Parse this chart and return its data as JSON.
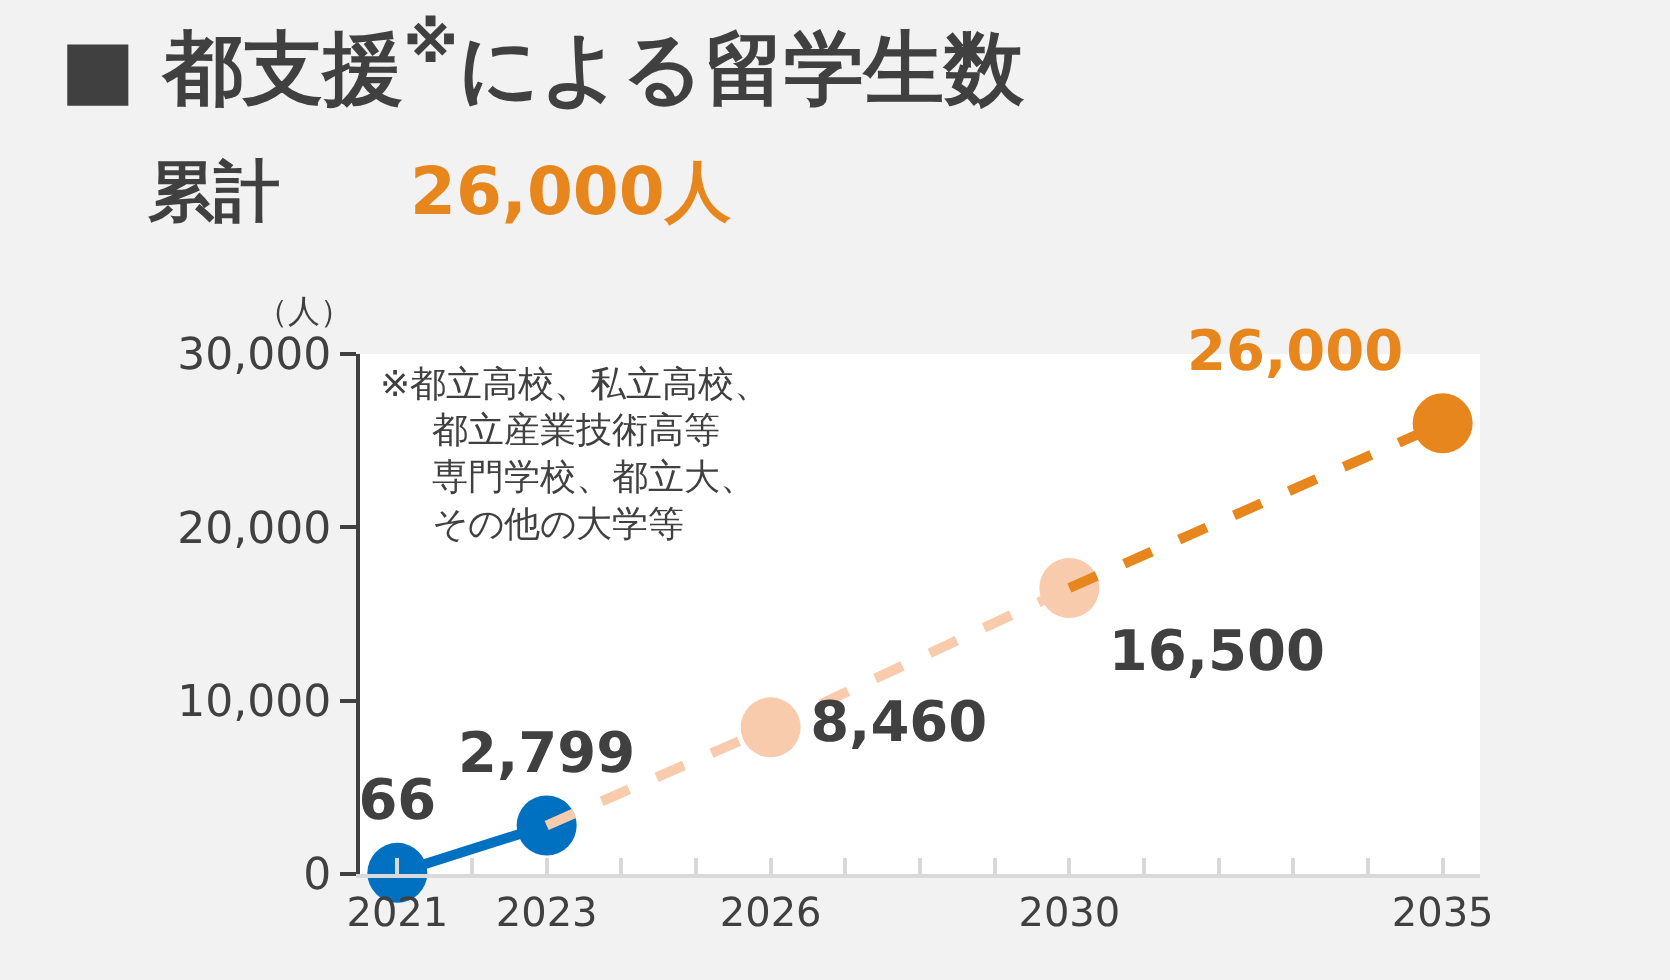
{
  "chart_data": {
    "type": "line",
    "title": "■ 都支援$^{※}$による留学生数",
    "subtitle": "累計",
    "ylabel": "（人）",
    "annotations": [
      "26,000人",
      "※都立高校、私立高校、都立産業技術高等専門学校、都立大、その他の大学等"
    ],
    "xlim": [
      2020.5,
      2035.5
    ],
    "xticks": [
      2021,
      {
        "value": 2022,
        "label": null
      },
      2023,
      {
        "value": 2024,
        "label": null
      },
      {
        "value": 2025,
        "label": null
      },
      2026,
      {
        "value": 2027,
        "label": null
      },
      {
        "value": 2028,
        "label": null
      },
      {
        "value": 2029,
        "label": null
      },
      2030,
      {
        "value": 2031,
        "label": null
      },
      {
        "value": 2032,
        "label": null
      },
      {
        "value": 2033,
        "label": null
      },
      {
        "value": 2034,
        "label": null
      },
      2035
    ],
    "ylim": [
      0,
      30000
    ],
    "yticks": [
      {
        "value": 0,
        "label": "0"
      },
      {
        "value": 10000,
        "label": "10,000"
      },
      {
        "value": 20000,
        "label": "20,000"
      },
      {
        "value": 30000,
        "label": "30,000"
      }
    ],
    "marker": "circle",
    "series": [
      {
        "color": "#0070c0",
        "x": [
          2021,
          2023
        ],
        "values": [
          66,
          2799
        ],
        "value_labels": [
          "66",
          "2,799"
        ],
        "line_style": "solid"
      },
      {
        "color": "#f8cbad",
        "x": [
          2023,
          2026,
          2030
        ],
        "values": [
          2799,
          8460,
          16500
        ],
        "value_labels": [
          null,
          "8,460",
          "16,500"
        ],
        "line_style": "dashed"
      },
      {
        "color": "#e8861e",
        "x": [
          2030,
          2035
        ],
        "values": [
          16500,
          26000
        ],
        "value_labels": [
          null,
          "26,000"
        ],
        "line_style": "dashed"
      }
    ]
  }
}
